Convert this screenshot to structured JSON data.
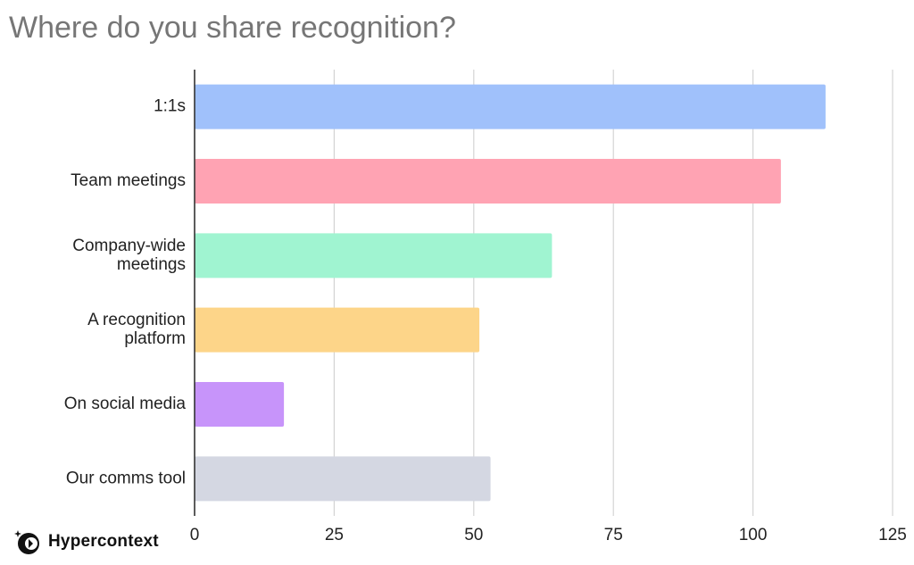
{
  "chart_data": {
    "type": "bar",
    "orientation": "horizontal",
    "title": "Where do you share recognition?",
    "categories": [
      "1:1s",
      "Team meetings",
      "Company-wide meetings",
      "A recognition platform",
      "On social media",
      "Our comms tool"
    ],
    "category_lines": [
      [
        "1:1s"
      ],
      [
        "Team meetings"
      ],
      [
        "Company-wide",
        "meetings"
      ],
      [
        "A recognition",
        "platform"
      ],
      [
        "On social media"
      ],
      [
        "Our comms tool"
      ]
    ],
    "values": [
      113,
      105,
      64,
      51,
      16,
      53
    ],
    "colors": [
      "#a0c1fb",
      "#ffa3b3",
      "#a0f4d1",
      "#fdd589",
      "#c794fa",
      "#d4d7e2"
    ],
    "xlim": [
      0,
      125
    ],
    "xticks": [
      0,
      25,
      50,
      75,
      100,
      125
    ],
    "xlabel": "",
    "ylabel": "",
    "grid": true,
    "legend": "none"
  },
  "branding": {
    "logo_text": "Hypercontext",
    "logo_icon": "hypercontext-logo-icon"
  }
}
